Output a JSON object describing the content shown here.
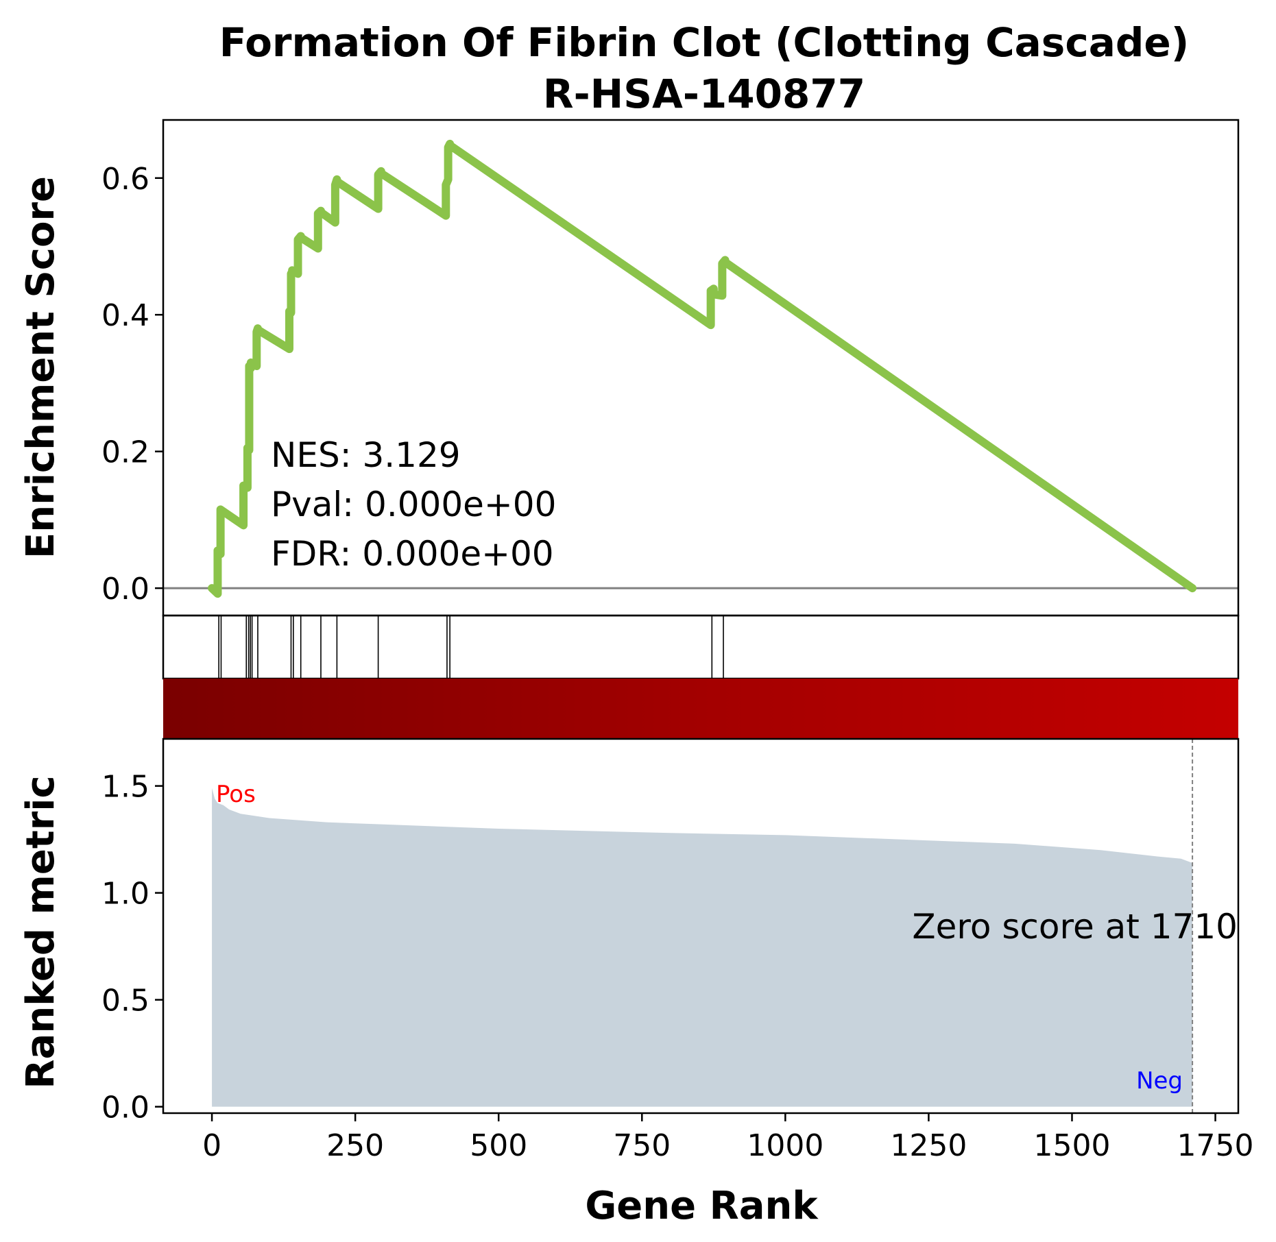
{
  "chart_data": {
    "type": "line",
    "title": "Formation Of Fibrin Clot (Clotting Cascade)",
    "subtitle": "R-HSA-140877",
    "xlabel": "Gene Rank",
    "ylabel_top": "Enrichment Score",
    "ylabel_bottom": "Ranked metric",
    "xlim": [
      -85,
      1790
    ],
    "ylim_top": [
      -0.04,
      0.685
    ],
    "ylim_bottom": [
      -0.03,
      1.72
    ],
    "x_ticks": [
      0,
      250,
      500,
      750,
      1000,
      1250,
      1500,
      1750
    ],
    "x_tick_labels": [
      "0",
      "250",
      "500",
      "750",
      "1000",
      "1250",
      "1500",
      "1750"
    ],
    "y_ticks_top": [
      0.0,
      0.2,
      0.4,
      0.6
    ],
    "y_tick_labels_top": [
      "0.0",
      "0.2",
      "0.4",
      "0.6"
    ],
    "y_ticks_bottom": [
      0.0,
      0.5,
      1.0,
      1.5
    ],
    "y_tick_labels_bottom": [
      "0.0",
      "0.5",
      "1.0",
      "1.5"
    ],
    "stats": {
      "nes": "NES: 3.129",
      "pval": "Pval: 0.000e+00",
      "fdr": "FDR: 0.000e+00"
    },
    "zero_score_label": "Zero score at 1710",
    "zero_score_rank": 1710,
    "pos_label": "Pos",
    "neg_label": "Neg",
    "enrichment_curve": {
      "x": [
        0,
        10,
        10,
        15,
        15,
        55,
        55,
        62,
        62,
        65,
        65,
        68,
        68,
        78,
        78,
        80,
        80,
        135,
        135,
        138,
        138,
        140,
        140,
        150,
        150,
        155,
        155,
        185,
        185,
        190,
        190,
        215,
        215,
        218,
        218,
        290,
        290,
        295,
        295,
        408,
        408,
        412,
        412,
        415,
        415,
        870,
        870,
        875,
        875,
        890,
        890,
        895,
        895,
        1710
      ],
      "y": [
        0.0,
        -0.008,
        0.055,
        0.05,
        0.115,
        0.092,
        0.15,
        0.147,
        0.205,
        0.202,
        0.325,
        0.322,
        0.33,
        0.325,
        0.375,
        0.38,
        0.378,
        0.35,
        0.405,
        0.403,
        0.46,
        0.463,
        0.465,
        0.46,
        0.51,
        0.515,
        0.513,
        0.497,
        0.548,
        0.552,
        0.55,
        0.535,
        0.59,
        0.598,
        0.595,
        0.555,
        0.605,
        0.61,
        0.607,
        0.545,
        0.59,
        0.598,
        0.645,
        0.65,
        0.648,
        0.385,
        0.435,
        0.438,
        0.43,
        0.428,
        0.475,
        0.48,
        0.477,
        0.0
      ],
      "color": "#8bc34a"
    },
    "hit_ranks": [
      12,
      16,
      60,
      64,
      67,
      70,
      80,
      138,
      142,
      155,
      190,
      218,
      290,
      410,
      415,
      872,
      892
    ],
    "ranked_metric": {
      "x": [
        0,
        2,
        5,
        10,
        20,
        30,
        50,
        100,
        200,
        300,
        500,
        800,
        1000,
        1200,
        1400,
        1550,
        1650,
        1690,
        1700,
        1710
      ],
      "y": [
        1.49,
        1.47,
        1.44,
        1.42,
        1.41,
        1.39,
        1.37,
        1.35,
        1.33,
        1.32,
        1.3,
        1.28,
        1.27,
        1.25,
        1.23,
        1.2,
        1.17,
        1.16,
        1.15,
        1.14
      ],
      "fill_color": "#c8d3dc"
    },
    "gradient_colors": [
      "#7a0000",
      "#a30000",
      "#c40000"
    ],
    "grid": false,
    "legend": "none"
  }
}
